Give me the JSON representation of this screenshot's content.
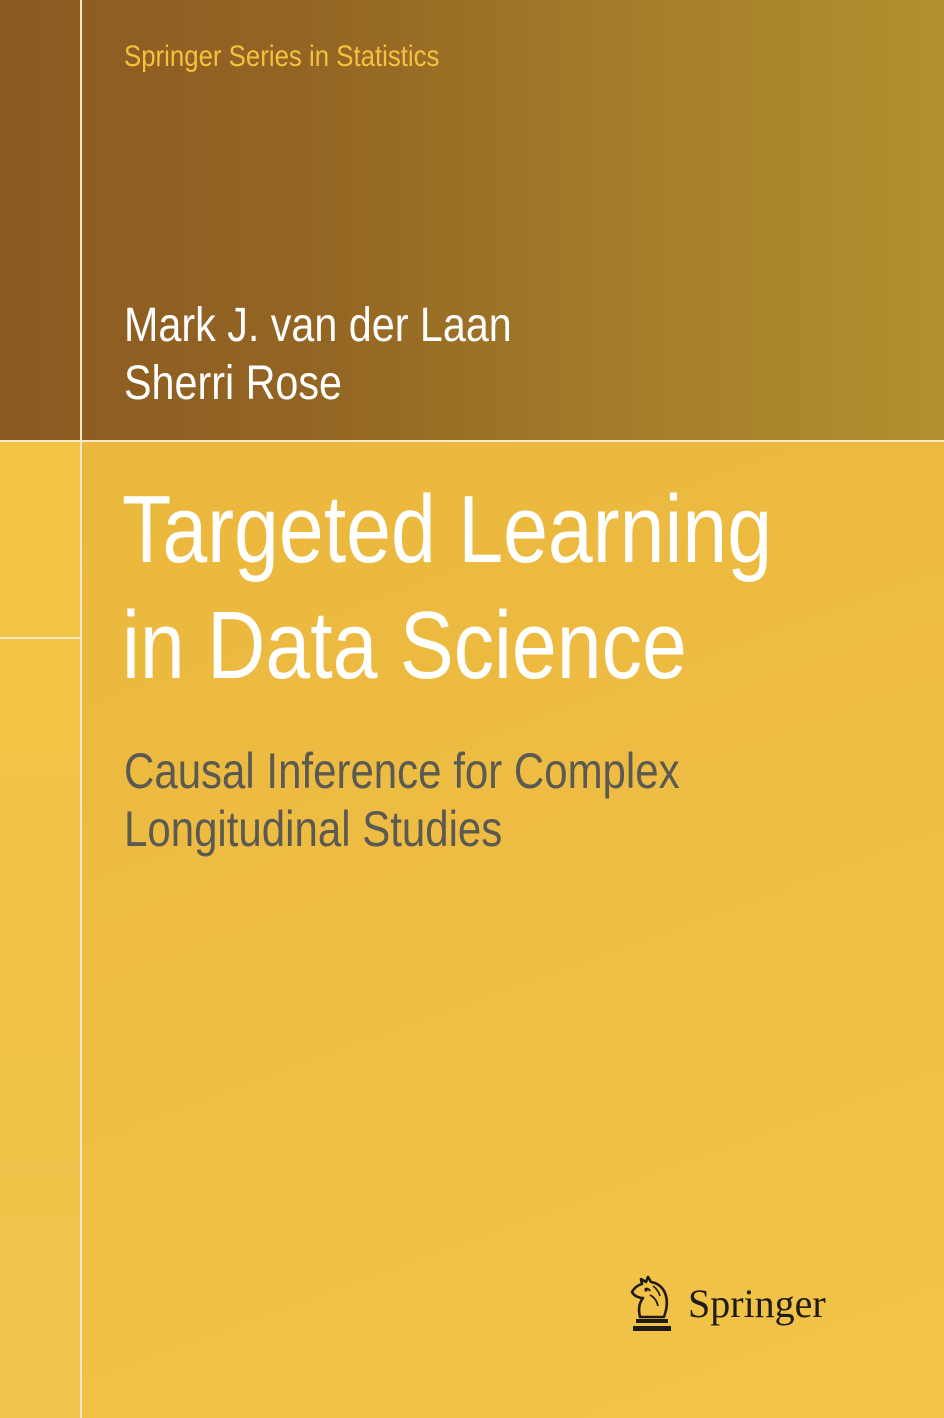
{
  "cover": {
    "series": "Springer Series in Statistics",
    "authors": [
      "Mark J. van der Laan",
      "Sherri Rose"
    ],
    "title_lines": [
      "Targeted Learning",
      "in Data Science"
    ],
    "subtitle_lines": [
      "Causal Inference for Complex",
      "Longitudinal Studies"
    ],
    "publisher": {
      "name": "Springer",
      "logo_icon": "knight-horse-head-icon"
    }
  },
  "colors": {
    "band_dark": "#8b5a22",
    "band_light": "#b0902f",
    "body_yellow": "#ecb93f",
    "series_text": "#f3c13e",
    "title_text": "#ffffff",
    "subtitle_text": "#5b5a52",
    "rule": "#f6e8c8"
  }
}
